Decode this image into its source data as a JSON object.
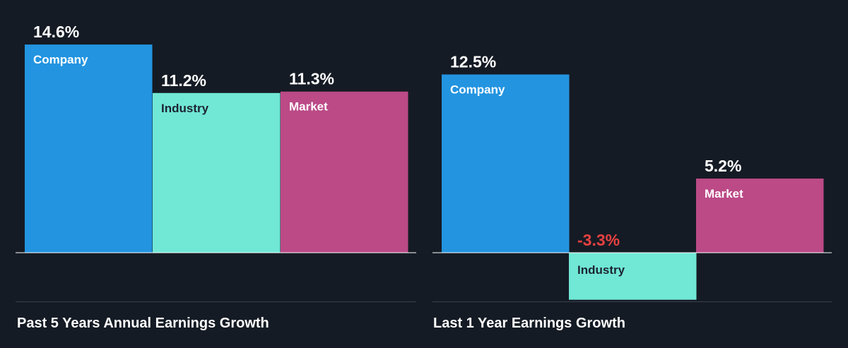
{
  "colors": {
    "background": "#151b24",
    "company": "#2394e0",
    "industry": "#71e7d6",
    "market": "#bb4a87",
    "axis": "#ffffff",
    "divider": "#3a4150",
    "text_light": "#ffffff",
    "text_dark": "#1b2430",
    "negative": "#e64141"
  },
  "chart_data": [
    {
      "type": "bar",
      "title": "Past 5 Years Annual Earnings Growth",
      "categories": [
        "Company",
        "Industry",
        "Market"
      ],
      "values": [
        14.6,
        11.2,
        11.3
      ],
      "value_labels": [
        "14.6%",
        "11.2%",
        "11.3%"
      ],
      "unit": "%"
    },
    {
      "type": "bar",
      "title": "Last 1 Year Earnings Growth",
      "categories": [
        "Company",
        "Industry",
        "Market"
      ],
      "values": [
        12.5,
        -3.3,
        5.2
      ],
      "value_labels": [
        "12.5%",
        "-3.3%",
        "5.2%"
      ],
      "unit": "%"
    }
  ]
}
